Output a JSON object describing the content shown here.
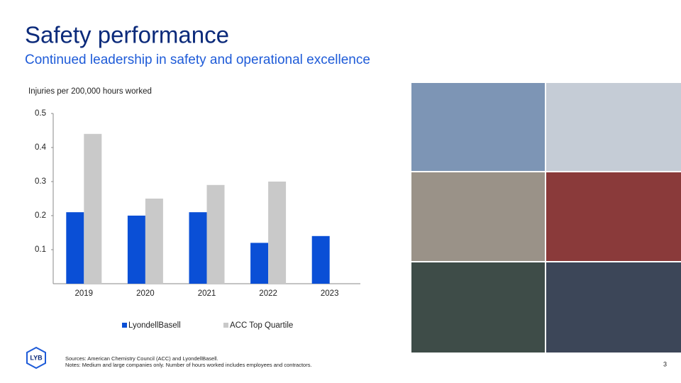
{
  "header": {
    "title": "Safety performance",
    "subtitle": "Continued leadership in safety and operational excellence"
  },
  "chart_data": {
    "type": "bar",
    "y_label": "Injuries per 200,000 hours worked",
    "categories": [
      "2019",
      "2020",
      "2021",
      "2022",
      "2023"
    ],
    "series": [
      {
        "name": "LyondellBasell",
        "color": "#0a4fd6",
        "values": [
          0.21,
          0.2,
          0.21,
          0.12,
          0.14
        ]
      },
      {
        "name": "ACC Top Quartile",
        "color": "#c9c9c9",
        "values": [
          0.44,
          0.25,
          0.29,
          0.3,
          null
        ]
      }
    ],
    "ylim": [
      0,
      0.5
    ],
    "yticks": [
      0.1,
      0.2,
      0.3,
      0.4,
      0.5
    ],
    "grid": false,
    "legend": "bottom"
  },
  "logo": "LYB",
  "footer": {
    "sources": "Sources: American Chemistry Council (ACC) and LyondellBasell.",
    "notes": "Notes: Medium and large companies only. Number of hours worked includes employees and contractors.",
    "page": "3"
  }
}
